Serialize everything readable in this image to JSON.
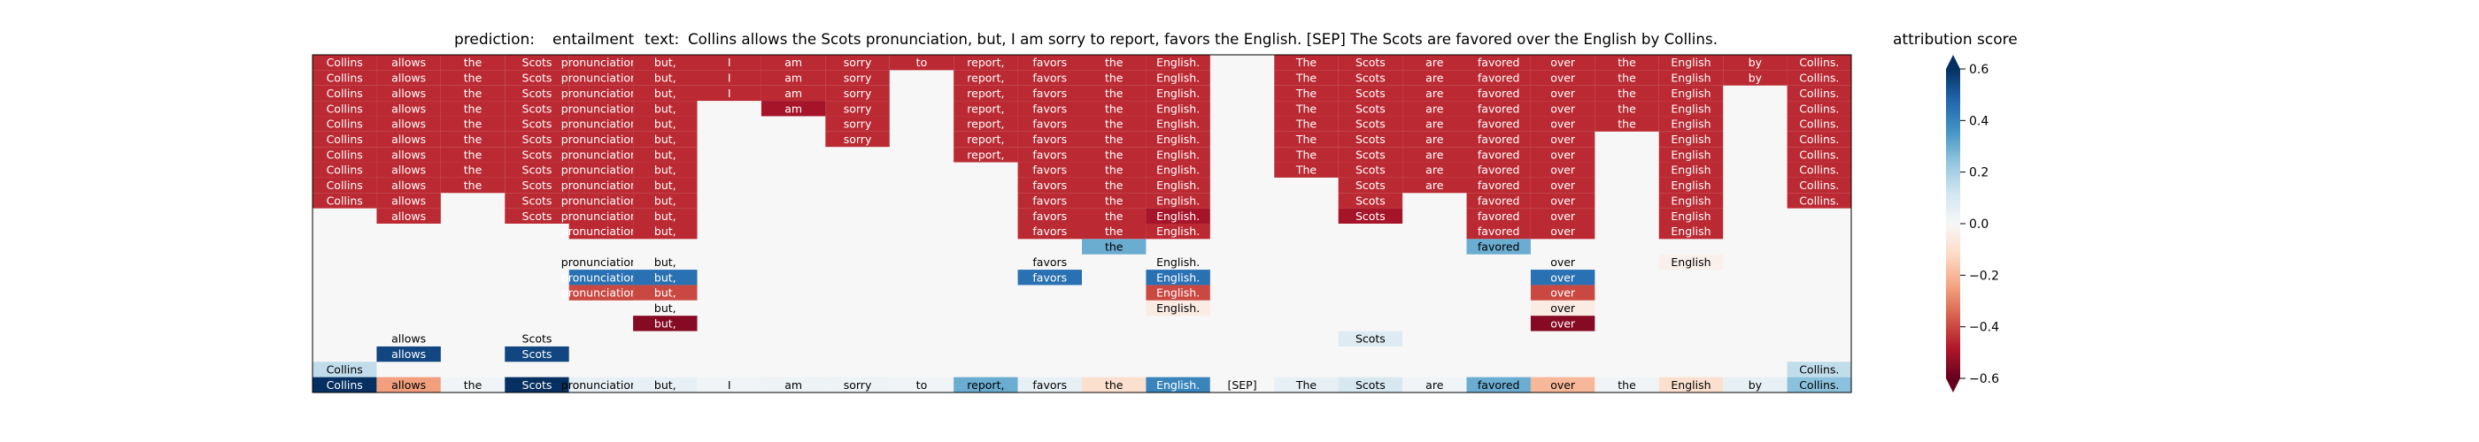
{
  "title": {
    "prediction_label": "prediction:",
    "prediction_value": "entailment",
    "text_label": "text:",
    "text_value": "Collins allows the Scots pronunciation, but, I am sorry to report, favors the English. [SEP] The Scots are favored over the English by Collins."
  },
  "colorbar": {
    "title": "attribution score",
    "ticks": [
      0.6,
      0.4,
      0.2,
      0.0,
      -0.2,
      -0.4,
      -0.6
    ],
    "tick_labels": [
      "0.6",
      "0.4",
      "0.2",
      "0.0",
      "−0.2",
      "−0.4",
      "−0.6"
    ],
    "range": [
      -0.6,
      0.6
    ],
    "colormap": "RdBu",
    "neg_color": "#67001f",
    "mid_color": "#f7f7f7",
    "pos_color": "#053061"
  },
  "chart_data": {
    "type": "heatmap",
    "tokens": [
      "Collins",
      "allows",
      "the",
      "Scots",
      "pronunciation,",
      "but,",
      "I",
      "am",
      "sorry",
      "to",
      "report,",
      "favors",
      "the",
      "English.",
      "[SEP]",
      "The",
      "Scots",
      "are",
      "favored",
      "over",
      "the",
      "English",
      "by",
      "Collins."
    ],
    "background_color": "#f7f7f7",
    "rows": [
      [
        -0.45,
        -0.45,
        -0.45,
        -0.45,
        -0.45,
        -0.45,
        -0.45,
        -0.45,
        -0.45,
        -0.45,
        -0.45,
        -0.45,
        -0.45,
        -0.45,
        null,
        -0.45,
        -0.45,
        -0.45,
        -0.45,
        -0.45,
        -0.45,
        -0.45,
        -0.45,
        -0.45
      ],
      [
        -0.45,
        -0.45,
        -0.45,
        -0.45,
        -0.45,
        -0.45,
        -0.45,
        -0.45,
        -0.45,
        null,
        -0.45,
        -0.45,
        -0.45,
        -0.45,
        null,
        -0.45,
        -0.45,
        -0.45,
        -0.45,
        -0.45,
        -0.45,
        -0.45,
        -0.45,
        -0.45
      ],
      [
        -0.45,
        -0.45,
        -0.45,
        -0.45,
        -0.45,
        -0.45,
        -0.45,
        -0.45,
        -0.45,
        null,
        -0.45,
        -0.45,
        -0.45,
        -0.45,
        null,
        -0.45,
        -0.45,
        -0.45,
        -0.45,
        -0.45,
        -0.45,
        -0.45,
        null,
        -0.45
      ],
      [
        -0.45,
        -0.45,
        -0.45,
        -0.45,
        -0.45,
        -0.45,
        null,
        -0.5,
        -0.45,
        null,
        -0.45,
        -0.45,
        -0.45,
        -0.45,
        null,
        -0.45,
        -0.45,
        -0.45,
        -0.45,
        -0.45,
        -0.45,
        -0.45,
        null,
        -0.45
      ],
      [
        -0.45,
        -0.45,
        -0.45,
        -0.45,
        -0.45,
        -0.45,
        null,
        null,
        -0.45,
        null,
        -0.45,
        -0.45,
        -0.45,
        -0.45,
        null,
        -0.45,
        -0.45,
        -0.45,
        -0.45,
        -0.45,
        -0.45,
        -0.45,
        null,
        -0.45
      ],
      [
        -0.45,
        -0.45,
        -0.45,
        -0.45,
        -0.45,
        -0.45,
        null,
        null,
        -0.45,
        null,
        -0.45,
        -0.45,
        -0.45,
        -0.45,
        null,
        -0.45,
        -0.45,
        -0.45,
        -0.45,
        -0.45,
        null,
        -0.45,
        null,
        -0.45
      ],
      [
        -0.45,
        -0.45,
        -0.45,
        -0.45,
        -0.45,
        -0.45,
        null,
        null,
        null,
        null,
        -0.45,
        -0.45,
        -0.45,
        -0.45,
        null,
        -0.45,
        -0.45,
        -0.45,
        -0.45,
        -0.45,
        null,
        -0.45,
        null,
        -0.45
      ],
      [
        -0.45,
        -0.45,
        -0.45,
        -0.45,
        -0.45,
        -0.45,
        null,
        null,
        null,
        null,
        null,
        -0.45,
        -0.45,
        -0.45,
        null,
        -0.45,
        -0.45,
        -0.45,
        -0.45,
        -0.45,
        null,
        -0.45,
        null,
        -0.45
      ],
      [
        -0.45,
        -0.45,
        -0.45,
        -0.45,
        -0.45,
        -0.45,
        null,
        null,
        null,
        null,
        null,
        -0.45,
        -0.45,
        -0.45,
        null,
        null,
        -0.45,
        -0.45,
        -0.45,
        -0.45,
        null,
        -0.45,
        null,
        -0.45
      ],
      [
        -0.45,
        -0.45,
        null,
        -0.45,
        -0.45,
        -0.45,
        null,
        null,
        null,
        null,
        null,
        -0.45,
        -0.45,
        -0.45,
        null,
        null,
        -0.45,
        null,
        -0.45,
        -0.45,
        null,
        -0.45,
        null,
        -0.45
      ],
      [
        null,
        -0.45,
        null,
        -0.45,
        -0.45,
        -0.45,
        null,
        null,
        null,
        null,
        null,
        -0.45,
        -0.45,
        -0.5,
        null,
        null,
        -0.5,
        null,
        -0.45,
        -0.45,
        null,
        -0.45,
        null,
        null
      ],
      [
        null,
        null,
        null,
        null,
        -0.45,
        -0.45,
        null,
        null,
        null,
        null,
        null,
        -0.45,
        -0.45,
        -0.45,
        null,
        null,
        null,
        null,
        -0.45,
        -0.45,
        null,
        -0.45,
        null,
        null
      ],
      [
        null,
        null,
        null,
        null,
        null,
        null,
        null,
        null,
        null,
        null,
        null,
        null,
        0.3,
        null,
        null,
        null,
        null,
        null,
        0.3,
        null,
        null,
        null,
        null,
        null
      ],
      [
        null,
        null,
        null,
        null,
        0.0,
        0.0,
        null,
        null,
        null,
        null,
        null,
        0.0,
        null,
        0.0,
        null,
        null,
        null,
        null,
        null,
        0.0,
        null,
        -0.03,
        null,
        null
      ],
      [
        null,
        null,
        null,
        null,
        0.45,
        0.45,
        null,
        null,
        null,
        null,
        null,
        0.45,
        null,
        0.45,
        null,
        null,
        null,
        null,
        null,
        0.45,
        null,
        null,
        null,
        null
      ],
      [
        null,
        null,
        null,
        null,
        -0.4,
        -0.4,
        null,
        null,
        null,
        null,
        null,
        null,
        null,
        -0.4,
        null,
        null,
        null,
        null,
        null,
        -0.4,
        null,
        null,
        null,
        null
      ],
      [
        null,
        null,
        null,
        null,
        null,
        0.0,
        null,
        null,
        null,
        null,
        null,
        null,
        null,
        -0.05,
        null,
        null,
        null,
        null,
        null,
        -0.05,
        null,
        null,
        null,
        null
      ],
      [
        null,
        null,
        null,
        null,
        null,
        -0.55,
        null,
        null,
        null,
        null,
        null,
        null,
        null,
        null,
        null,
        null,
        null,
        null,
        null,
        -0.55,
        null,
        null,
        null,
        null
      ],
      [
        null,
        0.0,
        null,
        0.0,
        null,
        null,
        null,
        null,
        null,
        null,
        null,
        null,
        null,
        null,
        null,
        null,
        0.08,
        null,
        null,
        null,
        null,
        null,
        null,
        null
      ],
      [
        null,
        0.55,
        null,
        0.55,
        null,
        null,
        null,
        null,
        null,
        null,
        null,
        null,
        null,
        null,
        null,
        null,
        null,
        null,
        null,
        null,
        null,
        null,
        null,
        null
      ],
      [
        0.15,
        null,
        null,
        null,
        null,
        null,
        null,
        null,
        null,
        null,
        null,
        null,
        null,
        null,
        null,
        null,
        null,
        null,
        null,
        null,
        null,
        null,
        null,
        0.15
      ],
      [
        0.62,
        -0.25,
        0.02,
        0.62,
        0.05,
        0.05,
        0.02,
        0.03,
        0.03,
        0.02,
        0.3,
        0.05,
        -0.1,
        0.4,
        0.0,
        0.05,
        0.1,
        0.02,
        0.3,
        -0.2,
        0.02,
        -0.1,
        0.05,
        0.25
      ]
    ]
  }
}
